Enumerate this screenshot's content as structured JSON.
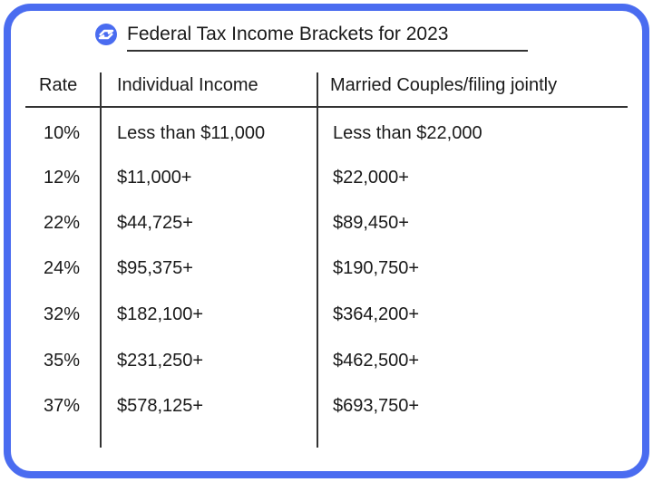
{
  "title": "Federal Tax Income Brackets for 2023",
  "logo_icon": "blue-circle-bolt-logo",
  "colors": {
    "border": "#4a6cf0"
  },
  "headers": [
    "Rate",
    "Individual Income",
    "Married Couples/filing jointly"
  ],
  "rows": [
    [
      "10%",
      "Less than $11,000",
      "Less than $22,000"
    ],
    [
      "12%",
      "$11,000+",
      "$22,000+"
    ],
    [
      "22%",
      "$44,725+",
      "$89,450+"
    ],
    [
      "24%",
      "$95,375+",
      "$190,750+"
    ],
    [
      "32%",
      "$182,100+",
      "$364,200+"
    ],
    [
      "35%",
      "$231,250+",
      "$462,500+"
    ],
    [
      "37%",
      "$578,125+",
      "$693,750+"
    ]
  ]
}
